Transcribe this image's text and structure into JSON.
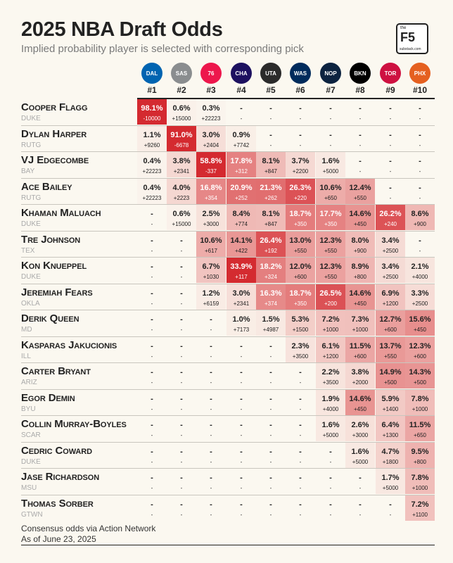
{
  "title": "2025 NBA Draft Odds",
  "subtitle": "Implied probability player is selected with corresponding pick",
  "badge": {
    "top": "the",
    "main": "F5",
    "site": "substack.com"
  },
  "footer": {
    "line1": "Consensus odds via Action Network",
    "line2": "As of June 23, 2025"
  },
  "colors": {
    "background": "#fbf8f0",
    "heat_max": "#d42a30",
    "heat_min": "#fbf8f0"
  },
  "teams": [
    {
      "pick": "#1",
      "icon": "mavericks-logo-icon",
      "abbr": "DAL",
      "color": "#0064b1"
    },
    {
      "pick": "#2",
      "icon": "spurs-logo-icon",
      "abbr": "SAS",
      "color": "#8a8d8f"
    },
    {
      "pick": "#3",
      "icon": "76ers-logo-icon",
      "abbr": "76",
      "color": "#ed174c"
    },
    {
      "pick": "#4",
      "icon": "hornets-logo-icon",
      "abbr": "CHA",
      "color": "#1d1160"
    },
    {
      "pick": "#5",
      "icon": "jazz-logo-icon",
      "abbr": "UTA",
      "color": "#2b2b2b"
    },
    {
      "pick": "#6",
      "icon": "wizards-logo-icon",
      "abbr": "WAS",
      "color": "#002b5c"
    },
    {
      "pick": "#7",
      "icon": "pelicans-logo-icon",
      "abbr": "NOP",
      "color": "#0c2340"
    },
    {
      "pick": "#8",
      "icon": "nets-logo-icon",
      "abbr": "BKN",
      "color": "#000000"
    },
    {
      "pick": "#9",
      "icon": "raptors-logo-icon",
      "abbr": "TOR",
      "color": "#ce1141"
    },
    {
      "pick": "#10",
      "icon": "suns-logo-icon",
      "abbr": "PHX",
      "color": "#e56020"
    }
  ],
  "chart_data": {
    "type": "table",
    "columns": [
      "#1",
      "#2",
      "#3",
      "#4",
      "#5",
      "#6",
      "#7",
      "#8",
      "#9",
      "#10"
    ],
    "rows": [
      {
        "player": "Cooper Flagg",
        "school": "DUKE",
        "pct": [
          "98.1%",
          "0.6%",
          "0.3%",
          "-",
          "-",
          "-",
          "-",
          "-",
          "-",
          "-"
        ],
        "odds": [
          "-10000",
          "+15000",
          "+22223",
          "-",
          "-",
          "-",
          "-",
          "-",
          "-",
          "-"
        ],
        "values": [
          98.1,
          0.6,
          0.3,
          null,
          null,
          null,
          null,
          null,
          null,
          null
        ]
      },
      {
        "player": "Dylan Harper",
        "school": "RUTG",
        "pct": [
          "1.1%",
          "91.0%",
          "3.0%",
          "0.9%",
          "-",
          "-",
          "-",
          "-",
          "-",
          "-"
        ],
        "odds": [
          "+9260",
          "-6678",
          "+2404",
          "+7742",
          "-",
          "-",
          "-",
          "-",
          "-",
          "-"
        ],
        "values": [
          1.1,
          91.0,
          3.0,
          0.9,
          null,
          null,
          null,
          null,
          null,
          null
        ]
      },
      {
        "player": "VJ Edgecombe",
        "school": "BAY",
        "pct": [
          "0.4%",
          "3.8%",
          "58.8%",
          "17.8%",
          "8.1%",
          "3.7%",
          "1.6%",
          "-",
          "-",
          "-"
        ],
        "odds": [
          "+22223",
          "+2341",
          "-337",
          "+312",
          "+847",
          "+2200",
          "+5000",
          "-",
          "-",
          "-"
        ],
        "values": [
          0.4,
          3.8,
          58.8,
          17.8,
          8.1,
          3.7,
          1.6,
          null,
          null,
          null
        ]
      },
      {
        "player": "Ace Bailey",
        "school": "RUTG",
        "pct": [
          "0.4%",
          "4.0%",
          "16.8%",
          "20.9%",
          "21.3%",
          "26.3%",
          "10.6%",
          "12.4%",
          "-",
          "-"
        ],
        "odds": [
          "+22223",
          "+2223",
          "+354",
          "+252",
          "+262",
          "+220",
          "+650",
          "+550",
          "-",
          "-"
        ],
        "values": [
          0.4,
          4.0,
          16.8,
          20.9,
          21.3,
          26.3,
          10.6,
          12.4,
          null,
          null
        ]
      },
      {
        "player": "Khaman Maluach",
        "school": "DUKE",
        "pct": [
          "-",
          "0.6%",
          "2.5%",
          "8.4%",
          "8.1%",
          "18.7%",
          "17.7%",
          "14.6%",
          "26.2%",
          "8.6%"
        ],
        "odds": [
          "-",
          "+15000",
          "+3000",
          "+774",
          "+847",
          "+350",
          "+350",
          "+450",
          "+240",
          "+900"
        ],
        "values": [
          null,
          0.6,
          2.5,
          8.4,
          8.1,
          18.7,
          17.7,
          14.6,
          26.2,
          8.6
        ]
      },
      {
        "player": "Tre Johnson",
        "school": "TEX",
        "pct": [
          "-",
          "-",
          "10.6%",
          "14.1%",
          "26.4%",
          "13.0%",
          "12.3%",
          "8.0%",
          "3.4%",
          "-"
        ],
        "odds": [
          "-",
          "-",
          "+617",
          "+422",
          "+192",
          "+550",
          "+550",
          "+900",
          "+2500",
          "-"
        ],
        "values": [
          null,
          null,
          10.6,
          14.1,
          26.4,
          13.0,
          12.3,
          8.0,
          3.4,
          null
        ]
      },
      {
        "player": "Kon Knueppel",
        "school": "DUKE",
        "pct": [
          "-",
          "-",
          "6.7%",
          "33.9%",
          "18.2%",
          "12.0%",
          "12.3%",
          "8.9%",
          "3.4%",
          "2.1%"
        ],
        "odds": [
          "-",
          "-",
          "+1030",
          "+117",
          "+324",
          "+600",
          "+550",
          "+800",
          "+2500",
          "+4000"
        ],
        "values": [
          null,
          null,
          6.7,
          33.9,
          18.2,
          12.0,
          12.3,
          8.9,
          3.4,
          2.1
        ]
      },
      {
        "player": "Jeremiah Fears",
        "school": "OKLA",
        "pct": [
          "-",
          "-",
          "1.2%",
          "3.0%",
          "16.3%",
          "18.7%",
          "26.5%",
          "14.6%",
          "6.9%",
          "3.3%"
        ],
        "odds": [
          "-",
          "-",
          "+6159",
          "+2341",
          "+374",
          "+350",
          "+200",
          "+450",
          "+1200",
          "+2500"
        ],
        "values": [
          null,
          null,
          1.2,
          3.0,
          16.3,
          18.7,
          26.5,
          14.6,
          6.9,
          3.3
        ]
      },
      {
        "player": "Derik Queen",
        "school": "MD",
        "pct": [
          "-",
          "-",
          "-",
          "1.0%",
          "1.5%",
          "5.3%",
          "7.2%",
          "7.3%",
          "12.7%",
          "15.6%"
        ],
        "odds": [
          "-",
          "-",
          "-",
          "+7173",
          "+4987",
          "+1500",
          "+1000",
          "+1000",
          "+600",
          "+450"
        ],
        "values": [
          null,
          null,
          null,
          1.0,
          1.5,
          5.3,
          7.2,
          7.3,
          12.7,
          15.6
        ]
      },
      {
        "player": "Kasparas Jakucionis",
        "school": "ILL",
        "pct": [
          "-",
          "-",
          "-",
          "-",
          "-",
          "2.3%",
          "6.1%",
          "11.5%",
          "13.7%",
          "12.3%"
        ],
        "odds": [
          "-",
          "-",
          "-",
          "-",
          "-",
          "+3500",
          "+1200",
          "+600",
          "+550",
          "+600"
        ],
        "values": [
          null,
          null,
          null,
          null,
          null,
          2.3,
          6.1,
          11.5,
          13.7,
          12.3
        ]
      },
      {
        "player": "Carter Bryant",
        "school": "ARIZ",
        "pct": [
          "-",
          "-",
          "-",
          "-",
          "-",
          "-",
          "2.2%",
          "3.8%",
          "14.9%",
          "14.3%"
        ],
        "odds": [
          "-",
          "-",
          "-",
          "-",
          "-",
          "-",
          "+3500",
          "+2000",
          "+500",
          "+500"
        ],
        "values": [
          null,
          null,
          null,
          null,
          null,
          null,
          2.2,
          3.8,
          14.9,
          14.3
        ]
      },
      {
        "player": "Egor Demin",
        "school": "BYU",
        "pct": [
          "-",
          "-",
          "-",
          "-",
          "-",
          "-",
          "1.9%",
          "14.6%",
          "5.9%",
          "7.8%"
        ],
        "odds": [
          "-",
          "-",
          "-",
          "-",
          "-",
          "-",
          "+4000",
          "+450",
          "+1400",
          "+1000"
        ],
        "values": [
          null,
          null,
          null,
          null,
          null,
          null,
          1.9,
          14.6,
          5.9,
          7.8
        ]
      },
      {
        "player": "Collin Murray-Boyles",
        "school": "SCAR",
        "pct": [
          "-",
          "-",
          "-",
          "-",
          "-",
          "-",
          "1.6%",
          "2.6%",
          "6.4%",
          "11.5%"
        ],
        "odds": [
          "-",
          "-",
          "-",
          "-",
          "-",
          "-",
          "+5000",
          "+3000",
          "+1300",
          "+650"
        ],
        "values": [
          null,
          null,
          null,
          null,
          null,
          null,
          1.6,
          2.6,
          6.4,
          11.5
        ]
      },
      {
        "player": "Cedric Coward",
        "school": "DUKE",
        "pct": [
          "-",
          "-",
          "-",
          "-",
          "-",
          "-",
          "-",
          "1.6%",
          "4.7%",
          "9.5%"
        ],
        "odds": [
          "-",
          "-",
          "-",
          "-",
          "-",
          "-",
          "-",
          "+5000",
          "+1800",
          "+800"
        ],
        "values": [
          null,
          null,
          null,
          null,
          null,
          null,
          null,
          1.6,
          4.7,
          9.5
        ]
      },
      {
        "player": "Jase Richardson",
        "school": "MSU",
        "pct": [
          "-",
          "-",
          "-",
          "-",
          "-",
          "-",
          "-",
          "-",
          "1.7%",
          "7.8%"
        ],
        "odds": [
          "-",
          "-",
          "-",
          "-",
          "-",
          "-",
          "-",
          "-",
          "+5000",
          "+1000"
        ],
        "values": [
          null,
          null,
          null,
          null,
          null,
          null,
          null,
          null,
          1.7,
          7.8
        ]
      },
      {
        "player": "Thomas Sorber",
        "school": "GTWN",
        "pct": [
          "-",
          "-",
          "-",
          "-",
          "-",
          "-",
          "-",
          "-",
          "-",
          "7.2%"
        ],
        "odds": [
          "-",
          "-",
          "-",
          "-",
          "-",
          "-",
          "-",
          "-",
          "-",
          "+1100"
        ],
        "values": [
          null,
          null,
          null,
          null,
          null,
          null,
          null,
          null,
          null,
          7.2
        ]
      }
    ]
  }
}
